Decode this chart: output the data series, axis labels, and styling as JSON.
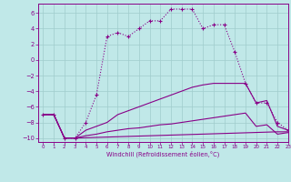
{
  "xlabel": "Windchill (Refroidissement éolien,°C)",
  "xlim": [
    -0.5,
    23
  ],
  "ylim": [
    -10.5,
    7.2
  ],
  "yticks": [
    -10,
    -8,
    -6,
    -4,
    -2,
    0,
    2,
    4,
    6
  ],
  "xticks": [
    0,
    1,
    2,
    3,
    4,
    5,
    6,
    7,
    8,
    9,
    10,
    11,
    12,
    13,
    14,
    15,
    16,
    17,
    18,
    19,
    20,
    21,
    22,
    23
  ],
  "bg_color": "#c0e8e8",
  "grid_color": "#a0cccc",
  "line_color": "#880088",
  "curve_main_x": [
    0,
    1,
    2,
    3,
    4,
    5,
    6,
    7,
    8,
    9,
    10,
    11,
    12,
    13,
    14,
    15,
    16,
    17,
    18,
    19,
    20,
    21,
    22,
    23
  ],
  "curve_main_y": [
    -7.0,
    -7.0,
    -10.0,
    -10.0,
    -8.0,
    -4.5,
    3.0,
    3.5,
    3.0,
    4.0,
    5.0,
    5.0,
    6.5,
    6.5,
    6.5,
    4.0,
    4.5,
    4.5,
    1.0,
    -3.0,
    -5.5,
    -5.5,
    -8.0,
    -9.0
  ],
  "curve2_x": [
    0,
    1,
    2,
    3,
    4,
    5,
    6,
    7,
    8,
    9,
    10,
    11,
    12,
    13,
    14,
    15,
    16,
    17,
    18,
    19,
    20,
    21,
    22,
    23
  ],
  "curve2_y": [
    -7.0,
    -7.0,
    -10.0,
    -10.0,
    -9.0,
    -8.5,
    -8.0,
    -7.0,
    -6.5,
    -6.0,
    -5.5,
    -5.0,
    -4.5,
    -4.0,
    -3.5,
    -3.2,
    -3.0,
    -3.0,
    -3.0,
    -3.0,
    -5.5,
    -5.2,
    -8.5,
    -9.0
  ],
  "curve3_x": [
    0,
    1,
    2,
    3,
    4,
    5,
    6,
    7,
    8,
    9,
    10,
    11,
    12,
    13,
    14,
    15,
    16,
    17,
    18,
    19,
    20,
    21,
    22,
    23
  ],
  "curve3_y": [
    -7.0,
    -7.0,
    -10.0,
    -10.0,
    -9.7,
    -9.5,
    -9.2,
    -9.0,
    -8.8,
    -8.7,
    -8.5,
    -8.3,
    -8.2,
    -8.0,
    -7.8,
    -7.6,
    -7.4,
    -7.2,
    -7.0,
    -6.8,
    -8.5,
    -8.3,
    -9.5,
    -9.3
  ],
  "curve4_x": [
    0,
    1,
    2,
    3,
    22,
    23
  ],
  "curve4_y": [
    -7.0,
    -7.0,
    -10.0,
    -10.0,
    -9.2,
    -9.2
  ]
}
